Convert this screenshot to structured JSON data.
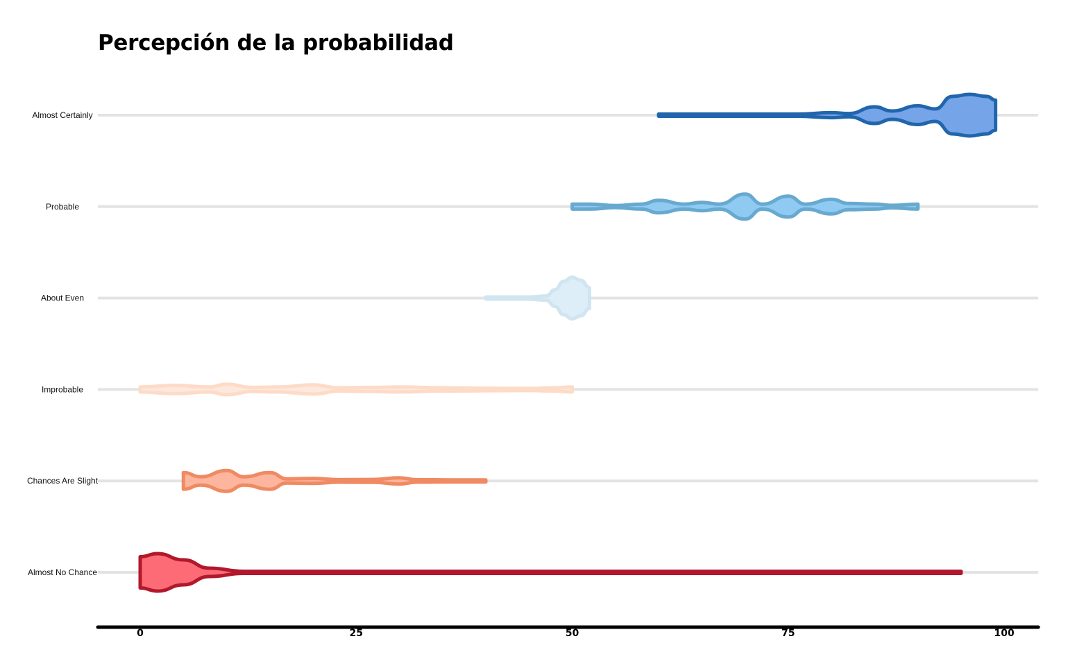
{
  "chart_data": {
    "type": "violin",
    "title": "Percepción de la probabilidad",
    "xlabel": "",
    "ylabel": "",
    "xlim": [
      0,
      100
    ],
    "x_ticks": [
      0,
      25,
      50,
      75,
      100
    ],
    "grid": "horizontal",
    "categories": [
      "Almost Certainly",
      "Probable",
      "About Even",
      "Improbable",
      "Chances Are Slight",
      "Almost No Chance"
    ],
    "series": [
      {
        "category": "Almost Certainly",
        "fill": "#75a4e8",
        "stroke": "#2166ac",
        "range": [
          60,
          99
        ],
        "density": [
          [
            60,
            0.02
          ],
          [
            70,
            0.02
          ],
          [
            76,
            0.02
          ],
          [
            80,
            0.12
          ],
          [
            82,
            0.08
          ],
          [
            85,
            0.4
          ],
          [
            87,
            0.2
          ],
          [
            90,
            0.45
          ],
          [
            92,
            0.3
          ],
          [
            94,
            0.9
          ],
          [
            96,
            1.0
          ],
          [
            98,
            0.9
          ],
          [
            99,
            0.72
          ]
        ]
      },
      {
        "category": "Probable",
        "fill": "#8fcaf2",
        "stroke": "#67a9cf",
        "range": [
          50,
          90
        ],
        "density": [
          [
            50,
            0.12
          ],
          [
            52,
            0.12
          ],
          [
            55,
            0.02
          ],
          [
            58,
            0.12
          ],
          [
            60,
            0.3
          ],
          [
            63,
            0.12
          ],
          [
            65,
            0.2
          ],
          [
            67,
            0.12
          ],
          [
            70,
            0.6
          ],
          [
            72,
            0.12
          ],
          [
            75,
            0.5
          ],
          [
            77,
            0.12
          ],
          [
            80,
            0.35
          ],
          [
            82,
            0.15
          ],
          [
            85,
            0.12
          ],
          [
            87,
            0.06
          ],
          [
            90,
            0.12
          ]
        ]
      },
      {
        "category": "About Even",
        "fill": "#ddeef9",
        "stroke": "#d1e5f0",
        "range": [
          40,
          52
        ],
        "density": [
          [
            40,
            0.02
          ],
          [
            45,
            0.02
          ],
          [
            47,
            0.1
          ],
          [
            48,
            0.4
          ],
          [
            49,
            0.8
          ],
          [
            50,
            1.0
          ],
          [
            51,
            0.85
          ],
          [
            52,
            0.5
          ]
        ]
      },
      {
        "category": "Improbable",
        "fill": "#fde8de",
        "stroke": "#fddbc7",
        "range": [
          0,
          50
        ],
        "density": [
          [
            0,
            0.12
          ],
          [
            4,
            0.2
          ],
          [
            8,
            0.12
          ],
          [
            10,
            0.25
          ],
          [
            13,
            0.1
          ],
          [
            16,
            0.12
          ],
          [
            20,
            0.22
          ],
          [
            23,
            0.08
          ],
          [
            27,
            0.1
          ],
          [
            30,
            0.12
          ],
          [
            35,
            0.08
          ],
          [
            40,
            0.06
          ],
          [
            45,
            0.04
          ],
          [
            48,
            0.08
          ],
          [
            50,
            0.12
          ]
        ]
      },
      {
        "category": "Chances Are Slight",
        "fill": "#fdb59e",
        "stroke": "#ef8a62",
        "range": [
          5,
          40
        ],
        "density": [
          [
            5,
            0.4
          ],
          [
            7,
            0.2
          ],
          [
            10,
            0.5
          ],
          [
            12,
            0.2
          ],
          [
            15,
            0.4
          ],
          [
            17,
            0.1
          ],
          [
            20,
            0.12
          ],
          [
            23,
            0.06
          ],
          [
            27,
            0.07
          ],
          [
            30,
            0.15
          ],
          [
            32,
            0.06
          ],
          [
            36,
            0.04
          ],
          [
            40,
            0.02
          ]
        ]
      },
      {
        "category": "Almost No Chance",
        "fill": "#fd6b76",
        "stroke": "#b2182b",
        "range": [
          0,
          95
        ],
        "density": [
          [
            0,
            0.75
          ],
          [
            2,
            0.9
          ],
          [
            5,
            0.6
          ],
          [
            8,
            0.2
          ],
          [
            12,
            0.05
          ],
          [
            18,
            0.01
          ],
          [
            50,
            0.01
          ],
          [
            92,
            0.01
          ],
          [
            95,
            0.05
          ]
        ]
      }
    ]
  }
}
